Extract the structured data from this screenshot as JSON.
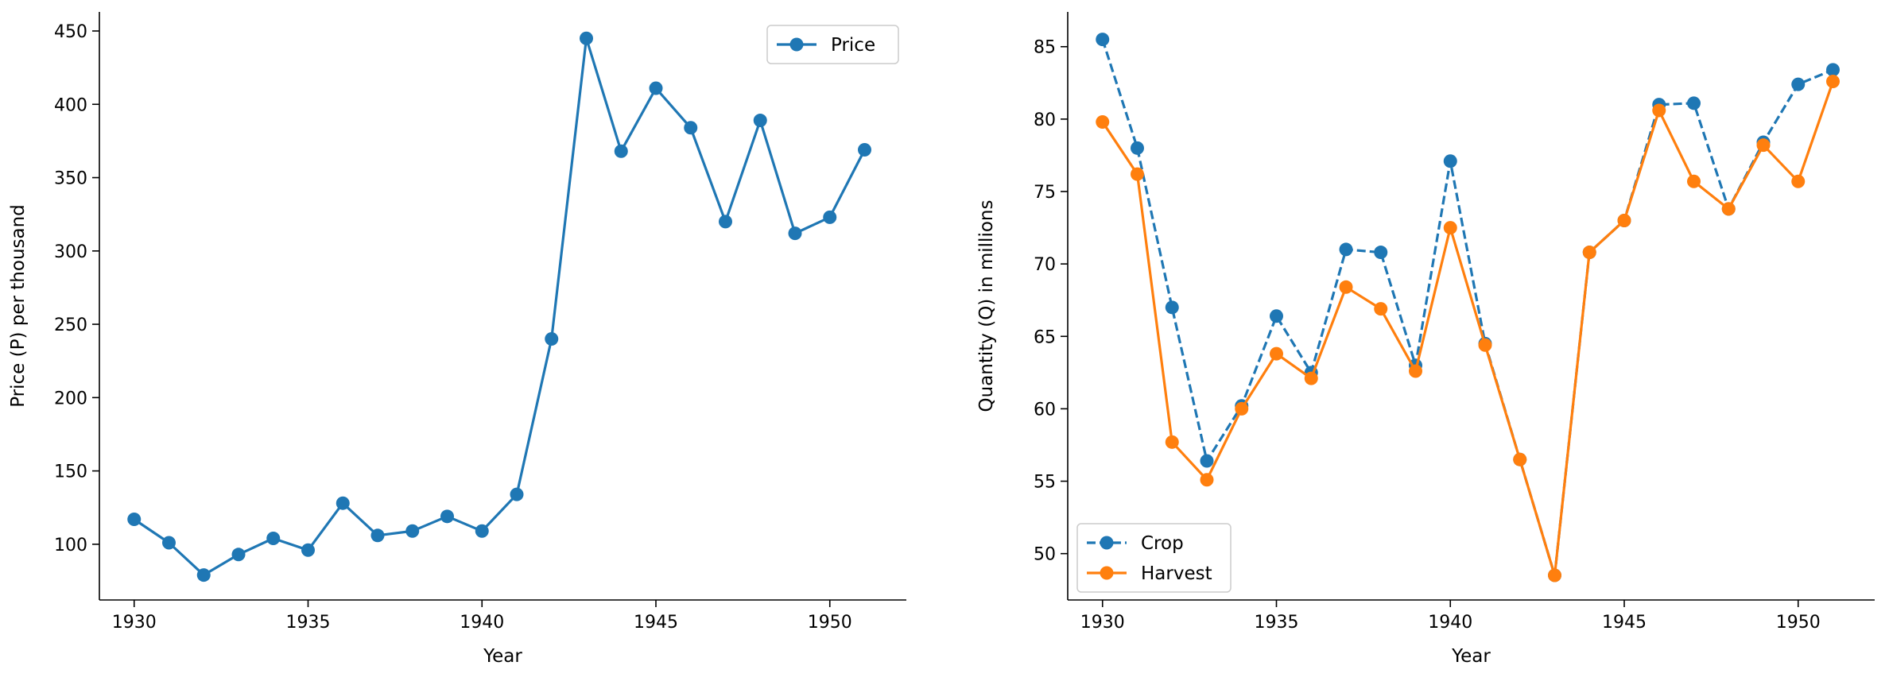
{
  "chart_data": [
    {
      "type": "line",
      "xlabel": "Year",
      "ylabel": "Price (P) per thousand",
      "xlim": [
        1929,
        1952.2
      ],
      "ylim": [
        62,
        463
      ],
      "xticks": [
        1930,
        1935,
        1940,
        1945,
        1950
      ],
      "yticks": [
        100,
        150,
        200,
        250,
        300,
        350,
        400,
        450
      ],
      "grid": false,
      "legend": "upper right",
      "x": [
        1930,
        1931,
        1932,
        1933,
        1934,
        1935,
        1936,
        1937,
        1938,
        1939,
        1940,
        1941,
        1942,
        1943,
        1944,
        1945,
        1946,
        1947,
        1948,
        1949,
        1950,
        1951
      ],
      "series": [
        {
          "name": "Price",
          "color": "#1f77b4",
          "linestyle": "solid",
          "values": [
            117,
            101,
            79,
            93,
            104,
            96,
            128,
            106,
            109,
            119,
            109,
            134,
            240,
            445,
            368,
            411,
            384,
            320,
            389,
            312,
            323,
            369
          ]
        }
      ]
    },
    {
      "type": "line",
      "xlabel": "Year",
      "ylabel": "Quantity (Q) in millions",
      "xlim": [
        1929,
        1952.2
      ],
      "ylim": [
        46.8,
        87.4
      ],
      "xticks": [
        1930,
        1935,
        1940,
        1945,
        1950
      ],
      "yticks": [
        50,
        55,
        60,
        65,
        70,
        75,
        80,
        85
      ],
      "grid": false,
      "legend": "lower left",
      "x": [
        1930,
        1931,
        1932,
        1933,
        1934,
        1935,
        1936,
        1937,
        1938,
        1939,
        1940,
        1941,
        1942,
        1943,
        1944,
        1945,
        1946,
        1947,
        1948,
        1949,
        1950,
        1951
      ],
      "series": [
        {
          "name": "Crop",
          "color": "#1f77b4",
          "linestyle": "dashed",
          "values": [
            85.5,
            78.0,
            67.0,
            56.4,
            60.2,
            66.4,
            62.5,
            71.0,
            70.8,
            63.0,
            77.1,
            64.5,
            56.5,
            48.5,
            70.8,
            73.0,
            81.0,
            81.1,
            73.8,
            78.4,
            82.4,
            83.4
          ]
        },
        {
          "name": "Harvest",
          "color": "#ff7f0e",
          "linestyle": "solid",
          "values": [
            79.8,
            76.2,
            57.7,
            55.1,
            60.0,
            63.8,
            62.1,
            68.4,
            66.9,
            62.6,
            72.5,
            64.4,
            56.5,
            48.5,
            70.8,
            73.0,
            80.6,
            75.7,
            73.8,
            78.2,
            75.7,
            82.6
          ]
        }
      ]
    }
  ]
}
